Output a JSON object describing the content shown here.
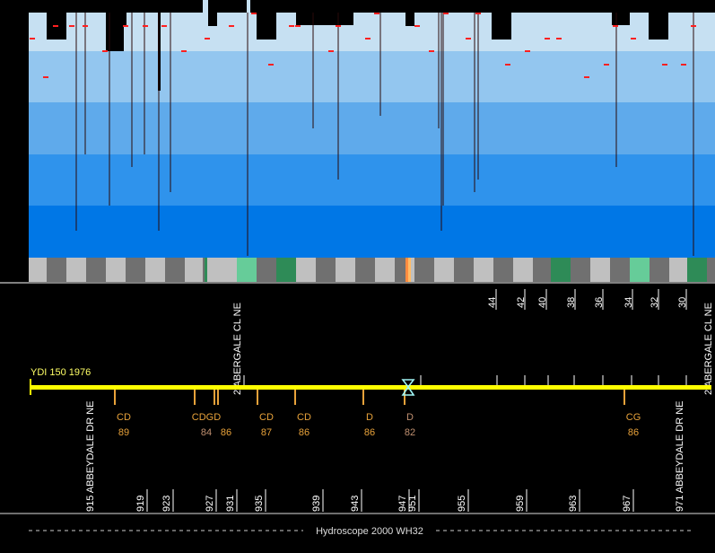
{
  "app": {
    "footer_title": "Hydroscope 2000 WH32"
  },
  "colors": {
    "bands": [
      "#c6e0f2",
      "#93c6ef",
      "#5faaeb",
      "#2f93ec",
      "#0077e6"
    ],
    "bar": "#ffff00",
    "label": "#e8a23a",
    "text": "#ffffff",
    "marker": "#ff2020",
    "cursor": "#9ff4f4"
  },
  "road": {
    "name_label": "YDI 150 1976",
    "start_street": "915 ABBEYDALE DR NE",
    "end_street": "971 ABBEYDALE DR NE",
    "cross_street_left": "2 ABERGALE CL NE",
    "cross_street_right": "2 ABERGALE CL NE"
  },
  "ticks": {
    "top_numbers": [
      "44",
      "42",
      "40",
      "38",
      "36",
      "34",
      "32",
      "30"
    ],
    "bottom_numbers": [
      "919",
      "923",
      "927",
      "931",
      "935",
      "939",
      "943",
      "947",
      "951",
      "955",
      "959",
      "963",
      "967"
    ]
  },
  "segments": [
    {
      "code": "CD",
      "year": "89"
    },
    {
      "code": "CDGD",
      "year": "84"
    },
    {
      "code": "",
      "year": "86"
    },
    {
      "code": "CD",
      "year": "87"
    },
    {
      "code": "CD",
      "year": "86"
    },
    {
      "code": "D",
      "year": "86"
    },
    {
      "code": "D",
      "year": "82"
    },
    {
      "code": "CG",
      "year": "86"
    }
  ]
}
